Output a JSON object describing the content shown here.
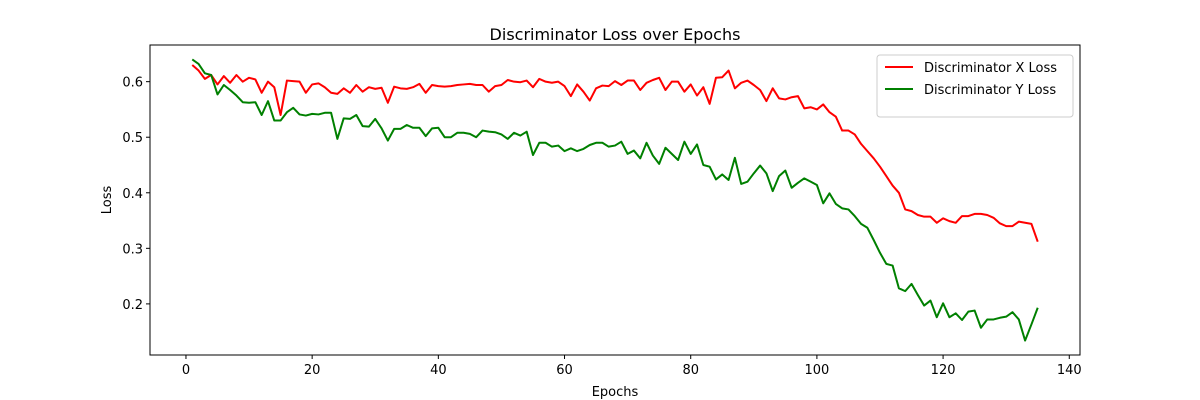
{
  "chart_data": {
    "type": "line",
    "title": "Discriminator Loss over Epochs",
    "xlabel": "Epochs",
    "ylabel": "Loss",
    "x": [
      1,
      2,
      3,
      4,
      5,
      6,
      7,
      8,
      9,
      10,
      11,
      12,
      13,
      14,
      15,
      16,
      17,
      18,
      19,
      20,
      21,
      22,
      23,
      24,
      25,
      26,
      27,
      28,
      29,
      30,
      31,
      32,
      33,
      34,
      35,
      36,
      37,
      38,
      39,
      40,
      41,
      42,
      43,
      44,
      45,
      46,
      47,
      48,
      49,
      50,
      51,
      52,
      53,
      54,
      55,
      56,
      57,
      58,
      59,
      60,
      61,
      62,
      63,
      64,
      65,
      66,
      67,
      68,
      69,
      70,
      71,
      72,
      73,
      74,
      75,
      76,
      77,
      78,
      79,
      80,
      81,
      82,
      83,
      84,
      85,
      86,
      87,
      88,
      89,
      90,
      91,
      92,
      93,
      94,
      95,
      96,
      97,
      98,
      99,
      100,
      101,
      102,
      103,
      104,
      105,
      106,
      107,
      108,
      109,
      110,
      111,
      112,
      113,
      114,
      115,
      116,
      117,
      118,
      119,
      120,
      121,
      122,
      123,
      124,
      125,
      126,
      127,
      128,
      129,
      130,
      131,
      132,
      133,
      134,
      135
    ],
    "series": [
      {
        "name": "Discriminator X Loss",
        "color": "#ff0000",
        "values": [
          0.63,
          0.62,
          0.605,
          0.612,
          0.595,
          0.61,
          0.598,
          0.612,
          0.6,
          0.607,
          0.604,
          0.58,
          0.6,
          0.59,
          0.54,
          0.602,
          0.601,
          0.6,
          0.58,
          0.595,
          0.597,
          0.59,
          0.58,
          0.578,
          0.588,
          0.58,
          0.594,
          0.582,
          0.59,
          0.587,
          0.589,
          0.562,
          0.591,
          0.588,
          0.587,
          0.59,
          0.596,
          0.58,
          0.594,
          0.592,
          0.591,
          0.592,
          0.594,
          0.595,
          0.596,
          0.594,
          0.594,
          0.582,
          0.592,
          0.594,
          0.603,
          0.6,
          0.599,
          0.602,
          0.59,
          0.605,
          0.6,
          0.598,
          0.6,
          0.592,
          0.574,
          0.595,
          0.582,
          0.566,
          0.588,
          0.593,
          0.592,
          0.601,
          0.594,
          0.602,
          0.602,
          0.585,
          0.598,
          0.603,
          0.607,
          0.585,
          0.6,
          0.6,
          0.582,
          0.595,
          0.575,
          0.59,
          0.56,
          0.607,
          0.608,
          0.62,
          0.588,
          0.598,
          0.602,
          0.594,
          0.585,
          0.565,
          0.588,
          0.57,
          0.568,
          0.572,
          0.574,
          0.552,
          0.554,
          0.55,
          0.559,
          0.545,
          0.537,
          0.512,
          0.512,
          0.505,
          0.488,
          0.475,
          0.462,
          0.447,
          0.43,
          0.413,
          0.4,
          0.37,
          0.367,
          0.36,
          0.357,
          0.357,
          0.346,
          0.354,
          0.349,
          0.346,
          0.358,
          0.358,
          0.362,
          0.362,
          0.36,
          0.355,
          0.345,
          0.34,
          0.34,
          0.348,
          0.346,
          0.344,
          0.312
        ]
      },
      {
        "name": "Discriminator Y Loss",
        "color": "#008000",
        "values": [
          0.64,
          0.632,
          0.615,
          0.612,
          0.577,
          0.594,
          0.585,
          0.575,
          0.563,
          0.562,
          0.563,
          0.54,
          0.565,
          0.53,
          0.53,
          0.545,
          0.553,
          0.541,
          0.539,
          0.542,
          0.541,
          0.544,
          0.544,
          0.497,
          0.534,
          0.533,
          0.54,
          0.52,
          0.519,
          0.533,
          0.516,
          0.494,
          0.515,
          0.515,
          0.522,
          0.517,
          0.517,
          0.502,
          0.516,
          0.517,
          0.5,
          0.5,
          0.508,
          0.508,
          0.506,
          0.5,
          0.512,
          0.51,
          0.509,
          0.505,
          0.497,
          0.508,
          0.503,
          0.51,
          0.468,
          0.49,
          0.49,
          0.483,
          0.485,
          0.475,
          0.48,
          0.475,
          0.479,
          0.486,
          0.49,
          0.49,
          0.483,
          0.485,
          0.492,
          0.47,
          0.476,
          0.462,
          0.49,
          0.467,
          0.452,
          0.481,
          0.47,
          0.459,
          0.492,
          0.47,
          0.487,
          0.45,
          0.447,
          0.424,
          0.433,
          0.423,
          0.463,
          0.416,
          0.42,
          0.435,
          0.449,
          0.435,
          0.403,
          0.43,
          0.44,
          0.409,
          0.418,
          0.426,
          0.42,
          0.414,
          0.381,
          0.399,
          0.38,
          0.372,
          0.37,
          0.358,
          0.344,
          0.337,
          0.315,
          0.292,
          0.272,
          0.269,
          0.228,
          0.223,
          0.236,
          0.216,
          0.197,
          0.206,
          0.176,
          0.201,
          0.176,
          0.183,
          0.171,
          0.186,
          0.188,
          0.157,
          0.172,
          0.172,
          0.175,
          0.177,
          0.185,
          0.172,
          0.134,
          0.163,
          0.193
        ]
      }
    ],
    "xlim": [
      -5.7,
      141.7
    ],
    "xticks": [
      0,
      20,
      40,
      60,
      80,
      100,
      120,
      140
    ],
    "ylim": [
      0.108,
      0.666
    ],
    "yticks": [
      0.2,
      0.3,
      0.4,
      0.5,
      0.6
    ],
    "grid": false,
    "legend": "upper right"
  }
}
